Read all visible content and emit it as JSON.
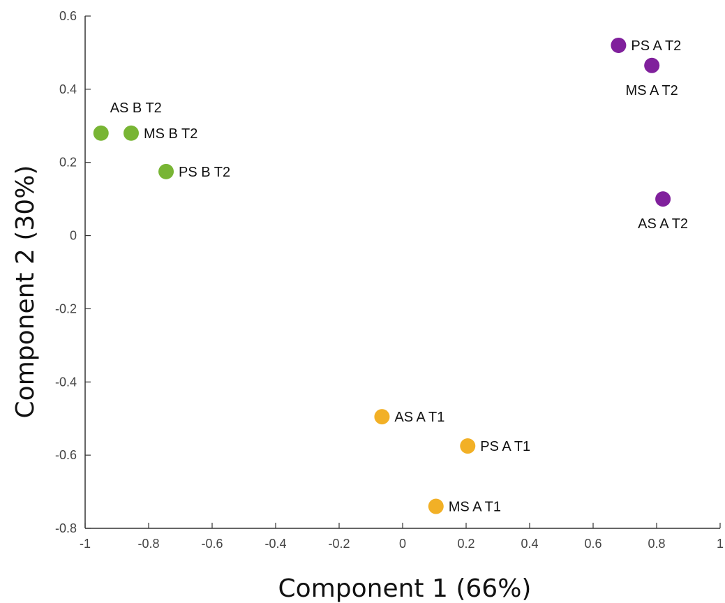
{
  "chart_data": {
    "type": "scatter",
    "xlabel": "Component 1 (66%)",
    "ylabel": "Component 2 (30%)",
    "xlim": [
      -1,
      1
    ],
    "ylim": [
      -0.8,
      0.6
    ],
    "xticks": [
      -1,
      -0.8,
      -0.6,
      -0.4,
      -0.2,
      0,
      0.2,
      0.4,
      0.6,
      0.8,
      1
    ],
    "yticks": [
      -0.8,
      -0.6,
      -0.4,
      -0.2,
      0,
      0.2,
      0.4,
      0.6
    ],
    "xtick_labels": [
      "-1",
      "-0.8",
      "-0.6",
      "-0.4",
      "-0.2",
      "0",
      "0.2",
      "0.4",
      "0.6",
      "0.8",
      "1"
    ],
    "ytick_labels": [
      "-0.8",
      "-0.6",
      "-0.4",
      "-0.2",
      "0",
      "0.2",
      "0.4",
      "0.6"
    ],
    "grid": false,
    "series": [
      {
        "color": "#78b534",
        "points": [
          {
            "x": -0.95,
            "y": 0.28,
            "label": "AS B T2",
            "label_pos": "above"
          },
          {
            "x": -0.855,
            "y": 0.28,
            "label": "MS B T2",
            "label_pos": "right"
          },
          {
            "x": -0.745,
            "y": 0.175,
            "label": "PS B T2",
            "label_pos": "right"
          }
        ]
      },
      {
        "color": "#80209c",
        "points": [
          {
            "x": 0.68,
            "y": 0.52,
            "label": "PS A T2",
            "label_pos": "right"
          },
          {
            "x": 0.785,
            "y": 0.465,
            "label": "MS A T2",
            "label_pos": "below"
          },
          {
            "x": 0.82,
            "y": 0.1,
            "label": "AS A T2",
            "label_pos": "below"
          }
        ]
      },
      {
        "color": "#f2b026",
        "points": [
          {
            "x": -0.065,
            "y": -0.495,
            "label": "AS A T1",
            "label_pos": "right"
          },
          {
            "x": 0.205,
            "y": -0.575,
            "label": "PS A T1",
            "label_pos": "right"
          },
          {
            "x": 0.105,
            "y": -0.74,
            "label": "MS A T1",
            "label_pos": "right"
          }
        ]
      }
    ]
  }
}
